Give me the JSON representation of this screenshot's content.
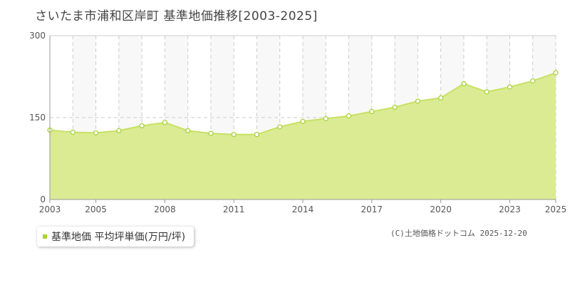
{
  "title": "さいたま市浦和区岸町 基準地価推移[2003-2025]",
  "legend": {
    "label": "基準地価 平均坪単価(万円/坪)"
  },
  "credit": "(C)土地価格ドットコム 2025-12-20",
  "colors": {
    "fill": "#dbeb94",
    "line": "#c7e163",
    "marker": "#a9d23a",
    "grid": "#cccccc"
  },
  "chart_data": {
    "type": "area",
    "x": [
      2003,
      2004,
      2005,
      2006,
      2007,
      2008,
      2009,
      2010,
      2011,
      2012,
      2013,
      2014,
      2015,
      2016,
      2017,
      2018,
      2019,
      2020,
      2021,
      2022,
      2023,
      2024,
      2025
    ],
    "series": [
      {
        "name": "基準地価 平均坪単価(万円/坪)",
        "values": [
          127,
          123,
          122,
          126,
          135,
          141,
          126,
          121,
          119,
          119,
          133,
          143,
          148,
          153,
          161,
          169,
          180,
          186,
          212,
          197,
          206,
          217,
          232
        ]
      }
    ],
    "x_tick_labels": [
      "2003",
      "2005",
      "2008",
      "2011",
      "2014",
      "2017",
      "2020",
      "2023",
      "2025"
    ],
    "y_ticks": [
      0,
      150,
      300
    ],
    "ylim": [
      0,
      300
    ],
    "grid": true
  }
}
